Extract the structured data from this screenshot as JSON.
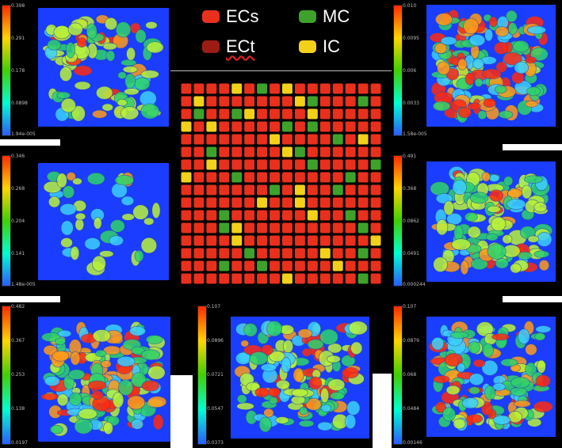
{
  "legend": {
    "items": [
      {
        "label": "ECs",
        "color": "#e8301c"
      },
      {
        "label": "ECt",
        "color": "#9b1c14"
      },
      {
        "label": "MC",
        "color": "#3ea22a"
      },
      {
        "label": "IC",
        "color": "#f3d11b"
      }
    ]
  },
  "panels": [
    {
      "name": "top-left",
      "ticks": [
        "0.398",
        "0.291",
        "0.178",
        "0.0898",
        "1.94e-005"
      ]
    },
    {
      "name": "top-right",
      "ticks": [
        "0.010",
        "0.0095",
        "0.006",
        "0.0033",
        "1.58e-005"
      ]
    },
    {
      "name": "mid-left",
      "ticks": [
        "0.346",
        "0.268",
        "0.204",
        "0.141",
        "1.48e-005"
      ]
    },
    {
      "name": "mid-right",
      "ticks": [
        "0.491",
        "0.368",
        "0.0862",
        "0.0491",
        "0.000244"
      ]
    },
    {
      "name": "bottom-left",
      "ticks": [
        "0.482",
        "0.367",
        "0.253",
        "0.138",
        "0.0197"
      ]
    },
    {
      "name": "bottom-center",
      "ticks": [
        "0.107",
        "0.0896",
        "0.0721",
        "0.0547",
        "0.0373"
      ]
    },
    {
      "name": "bottom-right",
      "ticks": [
        "0.107",
        "0.0879",
        "0.068",
        "0.0484",
        "0.00146"
      ]
    }
  ],
  "colors": {
    "scale_gradient": [
      "#ff2a00",
      "#ffd400",
      "#3fd000",
      "#00ffd0",
      "#2a5cff"
    ],
    "plot_background": "#1a3dff",
    "cell_outline": "#2f4ea0"
  },
  "grid": {
    "rows": 16,
    "cols": 16,
    "cells": "RRRRYRGRYRRRRRRRRYRRRRRRRYGRRRGRRGRRGYRRRRYRRRRRYRYRRRRRGRGRRRRRRRRRRRRYRRRRGRYRRRGRRRRRYGRRRRRRRRYRRRRRRRGRRRRGYRRRGRRRRRRRRGRRRRRRRRRGRYRRGRRRRRRRRRYRRYRRRRRRRRRGRRRRRRYRRGRRRRRGYRRRRRRRRRGRRRRRYRRRRRRRRRRYRRRRRGRRRRRYRRGRRRRGRRGRRRRRYRRRRRRRRRRRYRRRRRGRRYRRRR"
  }
}
